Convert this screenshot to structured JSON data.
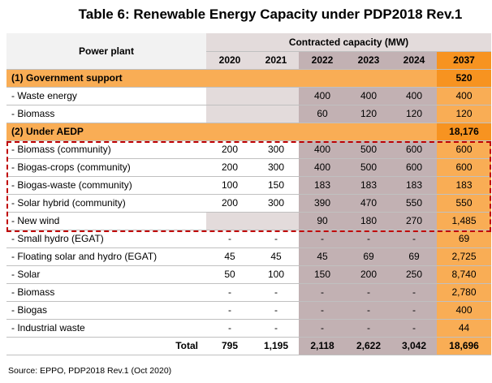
{
  "title": "Table 6:  Renewable Energy Capacity under PDP2018 Rev.1",
  "header": {
    "power_plant": "Power plant",
    "contracted_capacity": "Contracted capacity (MW)",
    "years": [
      "2020",
      "2021",
      "2022",
      "2023",
      "2024",
      "2037"
    ]
  },
  "rows": [
    {
      "type": "section",
      "label": "(1) Government support",
      "values": [
        "",
        "",
        "",
        "",
        "",
        "520"
      ]
    },
    {
      "type": "data",
      "label": " - Waste energy",
      "values": [
        "",
        "",
        "400",
        "400",
        "400",
        "400"
      ],
      "blank_gray": true
    },
    {
      "type": "data",
      "label": " - Biomass",
      "values": [
        "",
        "",
        "60",
        "120",
        "120",
        "120"
      ],
      "blank_gray": true
    },
    {
      "type": "section",
      "label": "(2) Under AEDP",
      "values": [
        "",
        "",
        "",
        "",
        "",
        "18,176"
      ]
    },
    {
      "type": "data",
      "label": " - Biomass (community)",
      "values": [
        "200",
        "300",
        "400",
        "500",
        "600",
        "600"
      ]
    },
    {
      "type": "data",
      "label": " - Biogas-crops (community)",
      "values": [
        "200",
        "300",
        "400",
        "500",
        "600",
        "600"
      ]
    },
    {
      "type": "data",
      "label": " - Biogas-waste (community)",
      "values": [
        "100",
        "150",
        "183",
        "183",
        "183",
        "183"
      ]
    },
    {
      "type": "data",
      "label": " - Solar hybrid (community)",
      "values": [
        "200",
        "300",
        "390",
        "470",
        "550",
        "550"
      ]
    },
    {
      "type": "data",
      "label": " - New wind",
      "values": [
        "",
        "",
        "90",
        "180",
        "270",
        "1,485"
      ],
      "blank_gray": true
    },
    {
      "type": "data",
      "label": " - Small hydro (EGAT)",
      "values": [
        "-",
        "-",
        "-",
        "-",
        "-",
        "69"
      ]
    },
    {
      "type": "data",
      "label": " - Floating solar and hydro (EGAT)",
      "values": [
        "45",
        "45",
        "45",
        "69",
        "69",
        "2,725"
      ]
    },
    {
      "type": "data",
      "label": " - Solar",
      "values": [
        "50",
        "100",
        "150",
        "200",
        "250",
        "8,740"
      ]
    },
    {
      "type": "data",
      "label": " - Biomass",
      "values": [
        "-",
        "-",
        "-",
        "-",
        "-",
        "2,780"
      ]
    },
    {
      "type": "data",
      "label": " - Biogas",
      "values": [
        "-",
        "-",
        "-",
        "-",
        "-",
        "400"
      ]
    },
    {
      "type": "data",
      "label": " - Industrial waste",
      "values": [
        "-",
        "-",
        "-",
        "-",
        "-",
        "44"
      ]
    },
    {
      "type": "total",
      "label": "Total",
      "values": [
        "795",
        "1,195",
        "2,118",
        "2,622",
        "3,042",
        "18,696"
      ]
    }
  ],
  "colors": {
    "header_gray": "#e3dbdb",
    "mauve": "#c2b1b3",
    "orange_light": "#f9ad55",
    "orange_dark": "#f79320",
    "highlight_red": "#c00000"
  },
  "source": "Source: EPPO, PDP2018 Rev.1 (Oct 2020)"
}
